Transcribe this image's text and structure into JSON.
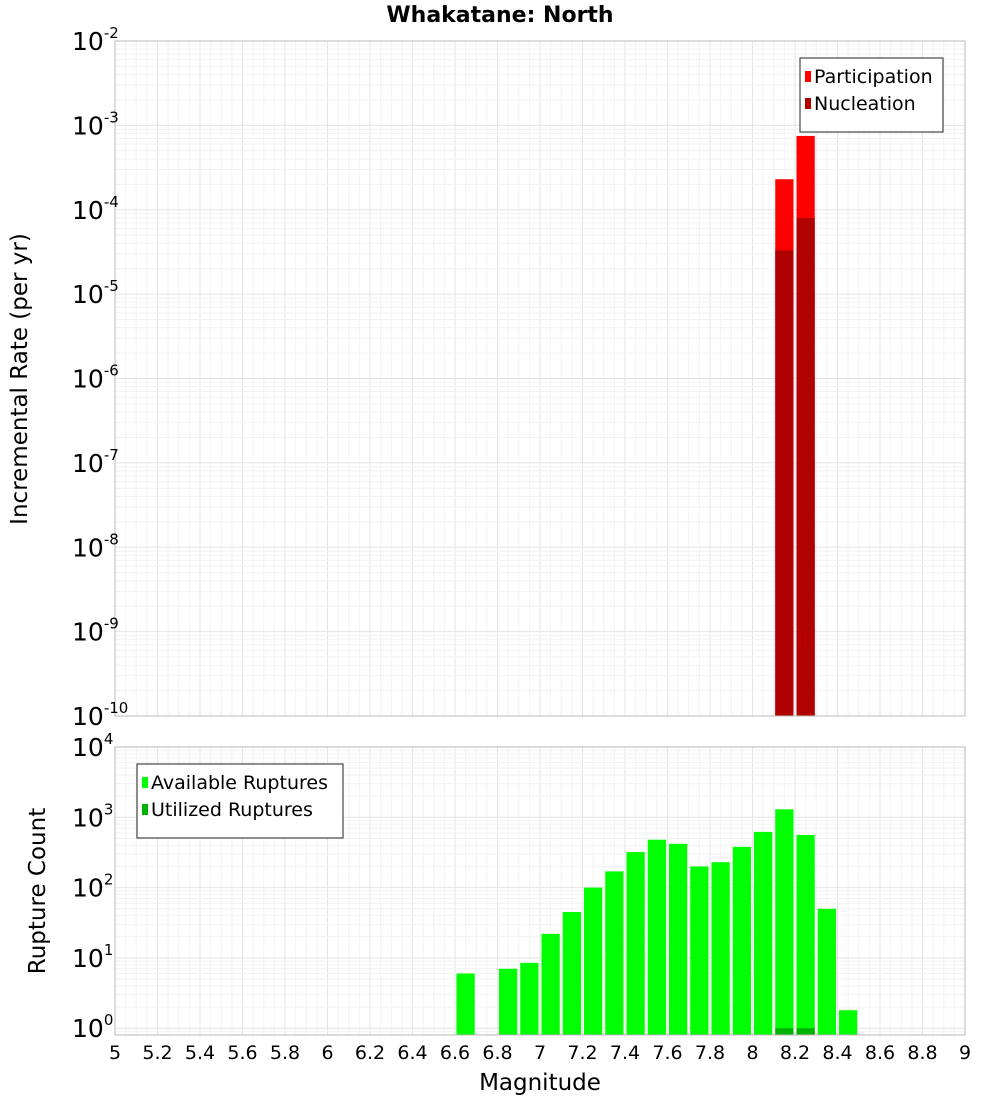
{
  "chart_data": [
    {
      "type": "bar",
      "title": "Whakatane: North",
      "xlabel": "",
      "ylabel": "Incremental Rate (per yr)",
      "yscale": "log",
      "xlim": [
        5,
        9
      ],
      "ylim": [
        1e-10,
        0.01
      ],
      "bar_width": 0.1,
      "grid": true,
      "legend": "top-right",
      "y_ticks": [
        {
          "base": "10",
          "exp": "-10",
          "value": 1e-10
        },
        {
          "base": "10",
          "exp": "-9",
          "value": 1e-09
        },
        {
          "base": "10",
          "exp": "-8",
          "value": 1e-08
        },
        {
          "base": "10",
          "exp": "-7",
          "value": 1e-07
        },
        {
          "base": "10",
          "exp": "-6",
          "value": 1e-06
        },
        {
          "base": "10",
          "exp": "-5",
          "value": 1e-05
        },
        {
          "base": "10",
          "exp": "-4",
          "value": 0.0001
        },
        {
          "base": "10",
          "exp": "-3",
          "value": 0.001
        },
        {
          "base": "10",
          "exp": "-2",
          "value": 0.01
        }
      ],
      "series": [
        {
          "name": "Participation",
          "color": "#ff0000",
          "x": [
            8.15,
            8.25
          ],
          "values": [
            0.00023,
            0.00075
          ]
        },
        {
          "name": "Nucleation",
          "color": "#b20000",
          "x": [
            8.15,
            8.25
          ],
          "values": [
            3.3e-05,
            8e-05
          ]
        }
      ]
    },
    {
      "type": "bar",
      "title": "",
      "xlabel": "Magnitude",
      "ylabel": "Rupture Count",
      "yscale": "log",
      "xlim": [
        5,
        9
      ],
      "ylim": [
        0.8,
        10000
      ],
      "bar_width": 0.1,
      "grid": true,
      "legend": "top-left",
      "x_ticks": [
        "5",
        "5.2",
        "5.4",
        "5.6",
        "5.8",
        "6",
        "6.2",
        "6.4",
        "6.6",
        "6.8",
        "7",
        "7.2",
        "7.4",
        "7.6",
        "7.8",
        "8",
        "8.2",
        "8.4",
        "8.6",
        "8.8",
        "9"
      ],
      "y_ticks": [
        {
          "base": "10",
          "exp": "0",
          "value": 1
        },
        {
          "base": "10",
          "exp": "1",
          "value": 10
        },
        {
          "base": "10",
          "exp": "2",
          "value": 100
        },
        {
          "base": "10",
          "exp": "3",
          "value": 1000
        },
        {
          "base": "10",
          "exp": "4",
          "value": 10000
        }
      ],
      "series": [
        {
          "name": "Available Ruptures",
          "color": "#00ff00",
          "x": [
            6.65,
            6.85,
            6.95,
            7.05,
            7.15,
            7.25,
            7.35,
            7.45,
            7.55,
            7.65,
            7.75,
            7.85,
            7.95,
            8.05,
            8.15,
            8.25,
            8.35,
            8.45
          ],
          "values": [
            6,
            7,
            8.5,
            22,
            45,
            100,
            170,
            320,
            480,
            420,
            200,
            230,
            380,
            620,
            1300,
            560,
            50,
            1.8
          ]
        },
        {
          "name": "Utilized Ruptures",
          "color": "#00b200",
          "x": [
            8.15,
            8.25
          ],
          "values": [
            1,
            1
          ]
        }
      ]
    }
  ]
}
